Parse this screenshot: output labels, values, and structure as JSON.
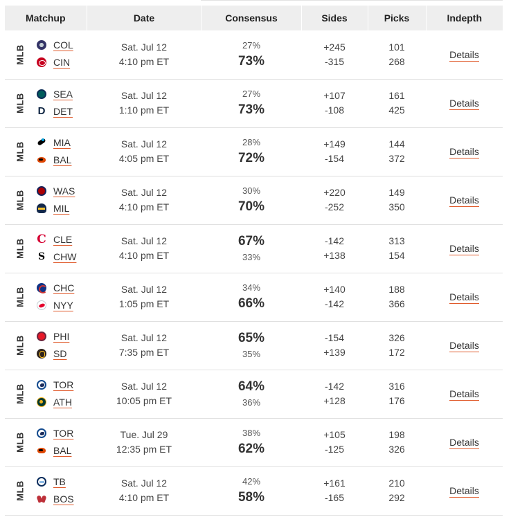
{
  "header": {
    "matchup": "Matchup",
    "date": "Date",
    "consensus": "Consensus",
    "sides": "Sides",
    "picks": "Picks",
    "indepth": "Indepth"
  },
  "colors": {
    "accent": "#e05a2b",
    "header_bg": "#eeeeee"
  },
  "games": [
    {
      "league": "MLB",
      "team1": {
        "abbr": "COL",
        "logo": "rockies-logo-icon",
        "side": "+245",
        "picks": "101",
        "pct": "27%"
      },
      "team2": {
        "abbr": "CIN",
        "logo": "reds-logo-icon",
        "side": "-315",
        "picks": "268",
        "pct": "73%"
      },
      "favored": 2,
      "day": "Sat. Jul 12",
      "time": "4:10 pm ET",
      "details": "Details"
    },
    {
      "league": "MLB",
      "team1": {
        "abbr": "SEA",
        "logo": "mariners-logo-icon",
        "side": "+107",
        "picks": "161",
        "pct": "27%"
      },
      "team2": {
        "abbr": "DET",
        "logo": "tigers-logo-icon",
        "side": "-108",
        "picks": "425",
        "pct": "73%"
      },
      "favored": 2,
      "day": "Sat. Jul 12",
      "time": "1:10 pm ET",
      "details": "Details"
    },
    {
      "league": "MLB",
      "team1": {
        "abbr": "MIA",
        "logo": "marlins-logo-icon",
        "side": "+149",
        "picks": "144",
        "pct": "28%"
      },
      "team2": {
        "abbr": "BAL",
        "logo": "orioles-logo-icon",
        "side": "-154",
        "picks": "372",
        "pct": "72%"
      },
      "favored": 2,
      "day": "Sat. Jul 12",
      "time": "4:05 pm ET",
      "details": "Details"
    },
    {
      "league": "MLB",
      "team1": {
        "abbr": "WAS",
        "logo": "nationals-logo-icon",
        "side": "+220",
        "picks": "149",
        "pct": "30%"
      },
      "team2": {
        "abbr": "MIL",
        "logo": "brewers-logo-icon",
        "side": "-252",
        "picks": "350",
        "pct": "70%"
      },
      "favored": 2,
      "day": "Sat. Jul 12",
      "time": "4:10 pm ET",
      "details": "Details"
    },
    {
      "league": "MLB",
      "team1": {
        "abbr": "CLE",
        "logo": "guardians-logo-icon",
        "side": "-142",
        "picks": "313",
        "pct": "67%"
      },
      "team2": {
        "abbr": "CHW",
        "logo": "white-sox-logo-icon",
        "side": "+138",
        "picks": "154",
        "pct": "33%"
      },
      "favored": 1,
      "day": "Sat. Jul 12",
      "time": "4:10 pm ET",
      "details": "Details"
    },
    {
      "league": "MLB",
      "team1": {
        "abbr": "CHC",
        "logo": "cubs-logo-icon",
        "side": "+140",
        "picks": "188",
        "pct": "34%"
      },
      "team2": {
        "abbr": "NYY",
        "logo": "yankees-logo-icon",
        "side": "-142",
        "picks": "366",
        "pct": "66%"
      },
      "favored": 2,
      "day": "Sat. Jul 12",
      "time": "1:05 pm ET",
      "details": "Details"
    },
    {
      "league": "MLB",
      "team1": {
        "abbr": "PHI",
        "logo": "phillies-logo-icon",
        "side": "-154",
        "picks": "326",
        "pct": "65%"
      },
      "team2": {
        "abbr": "SD",
        "logo": "padres-logo-icon",
        "side": "+139",
        "picks": "172",
        "pct": "35%"
      },
      "favored": 1,
      "day": "Sat. Jul 12",
      "time": "7:35 pm ET",
      "details": "Details"
    },
    {
      "league": "MLB",
      "team1": {
        "abbr": "TOR",
        "logo": "blue-jays-logo-icon",
        "side": "-142",
        "picks": "316",
        "pct": "64%"
      },
      "team2": {
        "abbr": "ATH",
        "logo": "athletics-logo-icon",
        "side": "+128",
        "picks": "176",
        "pct": "36%"
      },
      "favored": 1,
      "day": "Sat. Jul 12",
      "time": "10:05 pm ET",
      "details": "Details"
    },
    {
      "league": "MLB",
      "team1": {
        "abbr": "TOR",
        "logo": "blue-jays-logo-icon",
        "side": "+105",
        "picks": "198",
        "pct": "38%"
      },
      "team2": {
        "abbr": "BAL",
        "logo": "orioles-logo-icon",
        "side": "-125",
        "picks": "326",
        "pct": "62%"
      },
      "favored": 2,
      "day": "Tue. Jul 29",
      "time": "12:35 pm ET",
      "details": "Details"
    },
    {
      "league": "MLB",
      "team1": {
        "abbr": "TB",
        "logo": "rays-logo-icon",
        "side": "+161",
        "picks": "210",
        "pct": "42%"
      },
      "team2": {
        "abbr": "BOS",
        "logo": "red-sox-logo-icon",
        "side": "-165",
        "picks": "292",
        "pct": "58%"
      },
      "favored": 2,
      "day": "Sat. Jul 12",
      "time": "4:10 pm ET",
      "details": "Details"
    }
  ]
}
